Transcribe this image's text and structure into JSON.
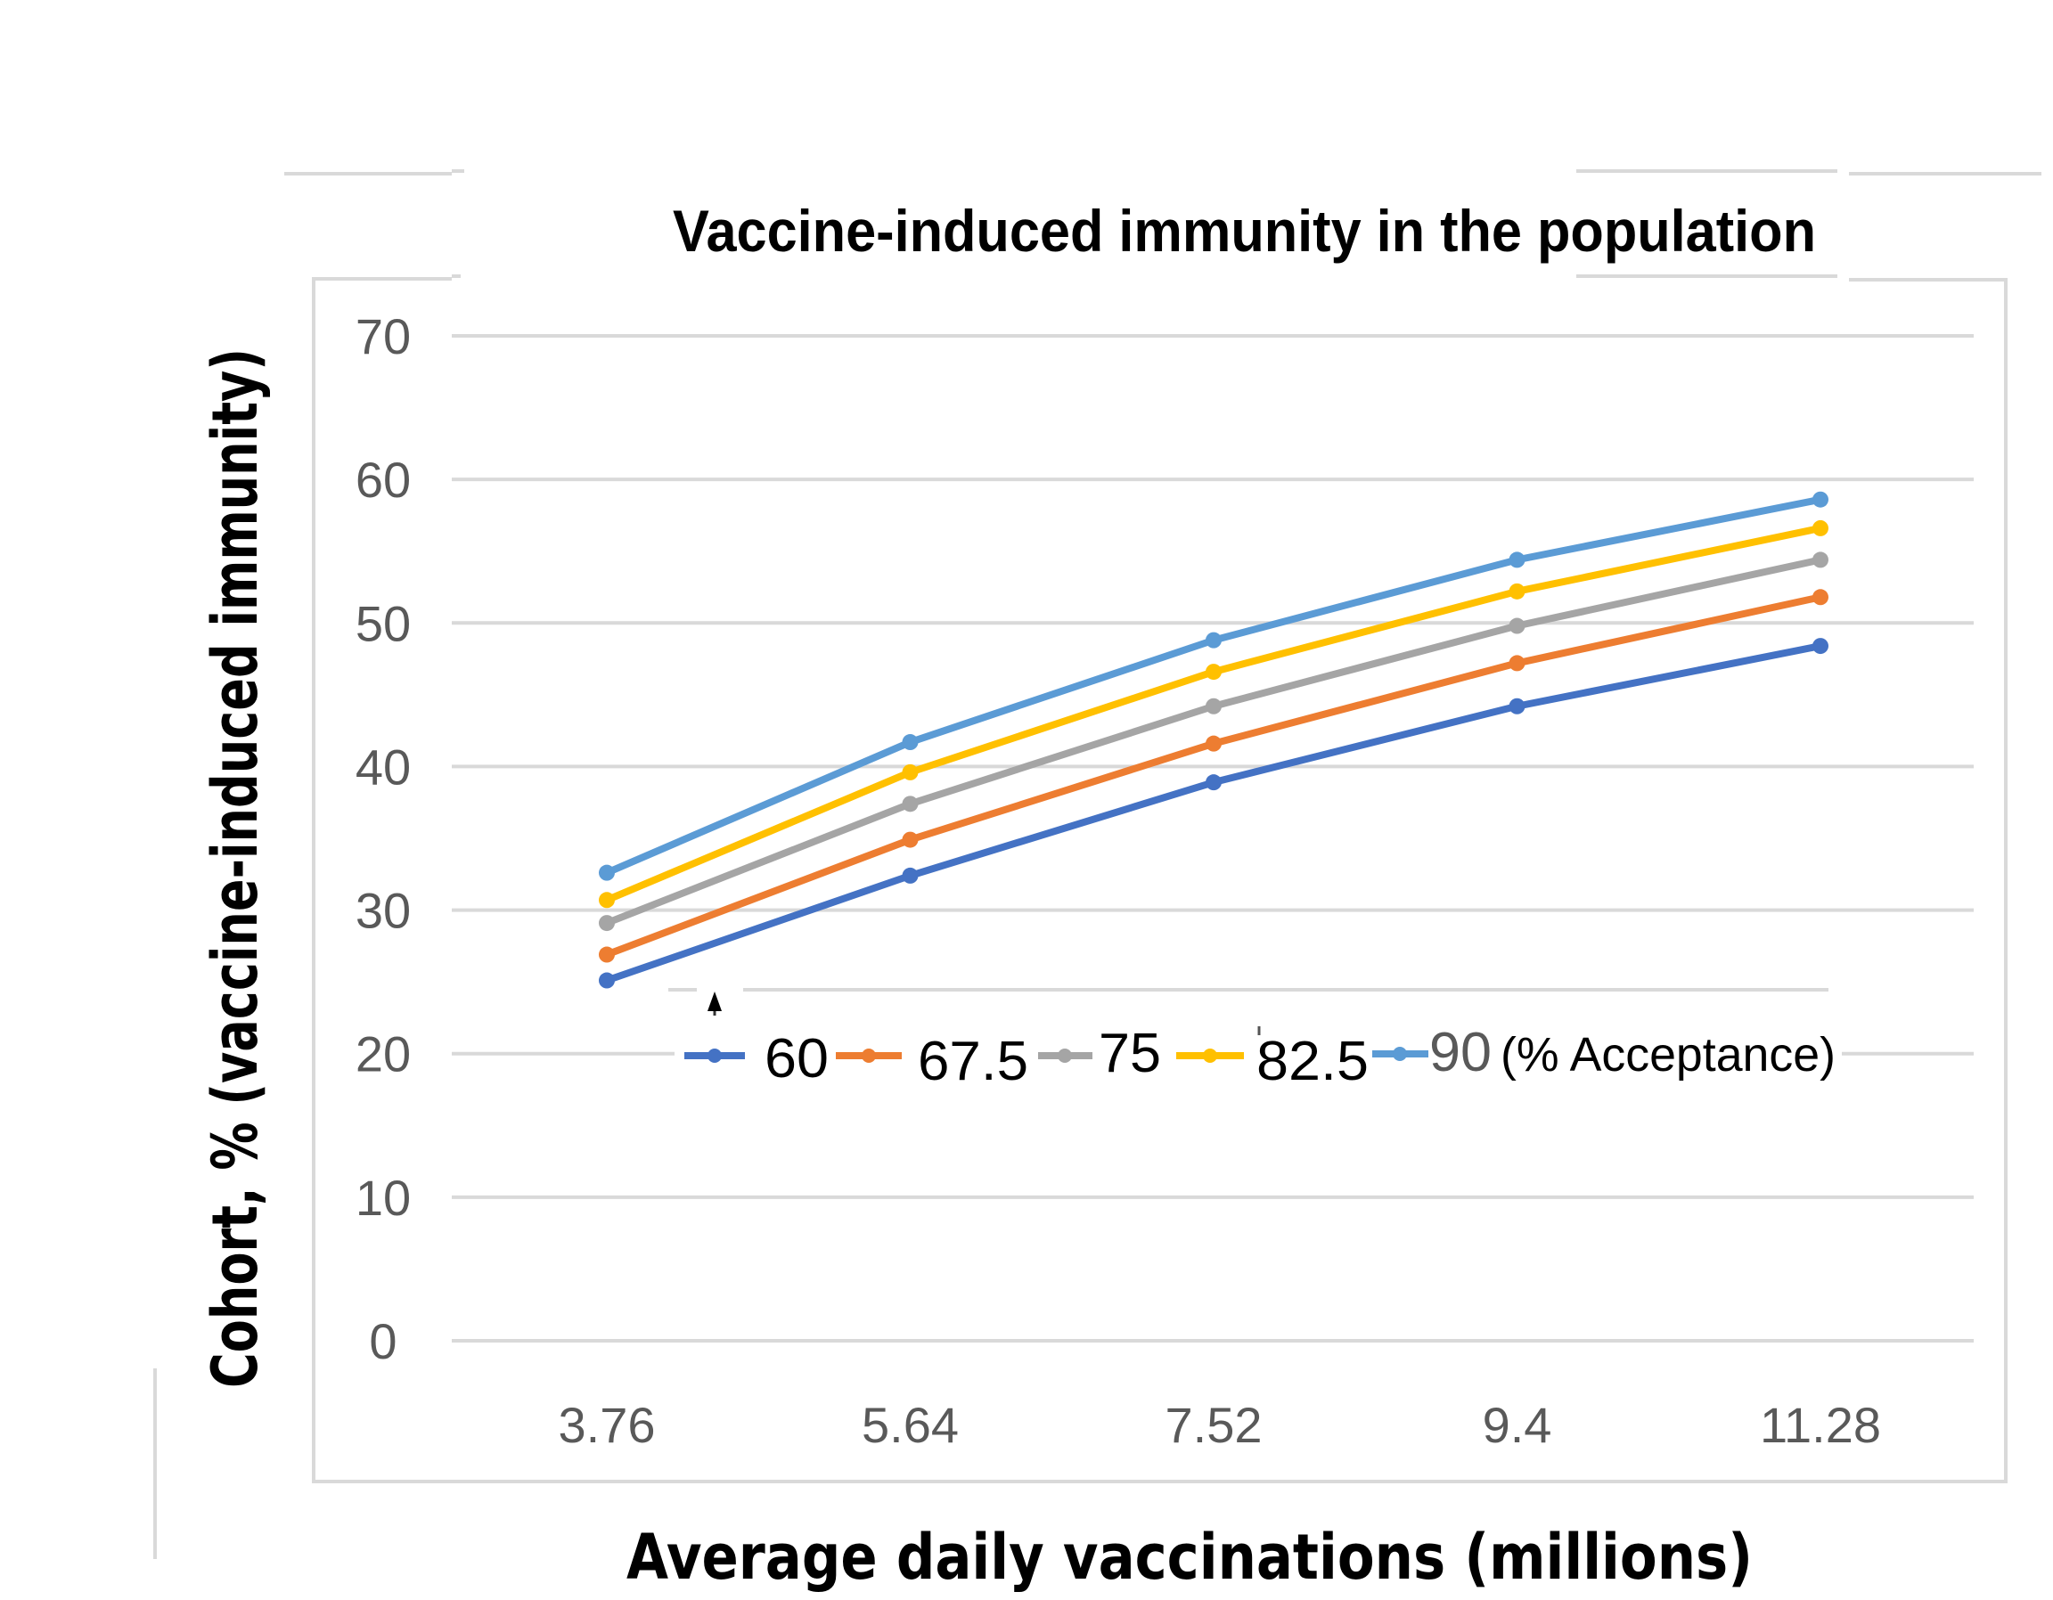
{
  "chart_data": {
    "type": "line",
    "title": "Vaccine-induced immunity in the population",
    "xlabel": "Average daily vaccinations (millions)",
    "ylabel": "Cohort, % (vaccine-induced immunity)",
    "categories": [
      "3.76",
      "5.64",
      "7.52",
      "9.4",
      "11.28"
    ],
    "ylim": [
      0,
      70
    ],
    "yticks": [
      "0",
      "10",
      "20",
      "30",
      "40",
      "50",
      "60",
      "70"
    ],
    "grid": true,
    "legend_placement": "inside-bottom",
    "legend_suffix": "(% Acceptance)",
    "series": [
      {
        "name": "60",
        "color": "#4472c4",
        "values": [
          25.1,
          32.4,
          38.9,
          44.2,
          48.4
        ]
      },
      {
        "name": "67.5",
        "color": "#ed7d31",
        "values": [
          26.9,
          34.9,
          41.6,
          47.2,
          51.8
        ]
      },
      {
        "name": "75",
        "color": "#a5a5a5",
        "values": [
          29.1,
          37.4,
          44.2,
          49.8,
          54.4
        ]
      },
      {
        "name": "82.5",
        "color": "#ffc000",
        "values": [
          30.7,
          39.6,
          46.6,
          52.2,
          56.6
        ]
      },
      {
        "name": "90",
        "color": "#5b9bd5",
        "values": [
          32.6,
          41.7,
          48.8,
          54.4,
          58.6
        ]
      }
    ]
  }
}
